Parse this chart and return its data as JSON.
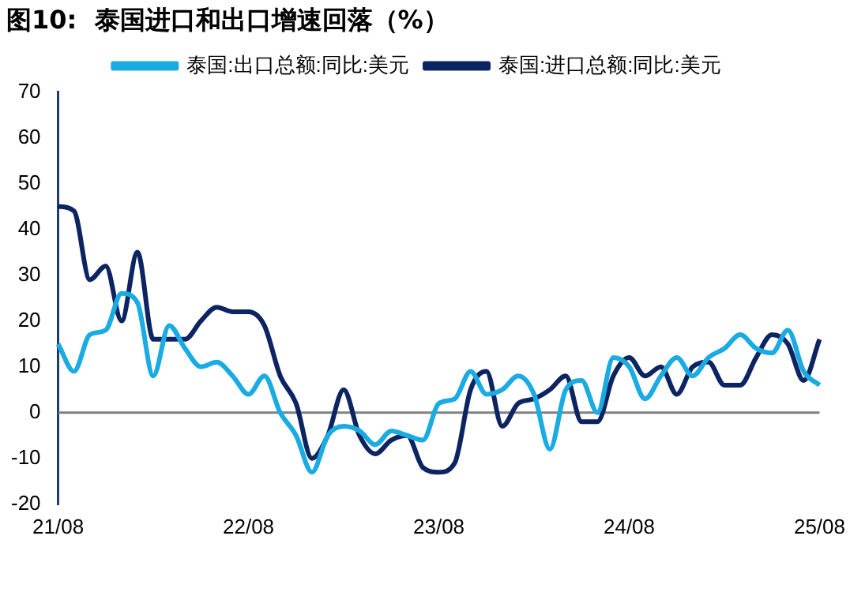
{
  "chart_data": {
    "type": "line",
    "title": "图10:  泰国进口和出口增速回落（%）",
    "categories": [
      "21/08",
      null,
      null,
      null,
      null,
      null,
      null,
      null,
      null,
      null,
      null,
      null,
      "22/08",
      null,
      null,
      null,
      null,
      null,
      null,
      null,
      null,
      null,
      null,
      null,
      "23/08",
      null,
      null,
      null,
      null,
      null,
      null,
      null,
      null,
      null,
      null,
      null,
      "24/08",
      null,
      null,
      null,
      null,
      null,
      null,
      null,
      null,
      null,
      null,
      null,
      "25/08"
    ],
    "series": [
      {
        "name": "泰国:出口总额:同比:美元",
        "color": "#1aabe2",
        "values": [
          15,
          9,
          17,
          18,
          26,
          24,
          8,
          19,
          14,
          10,
          11,
          8,
          4,
          8,
          0,
          -5,
          -13,
          -5,
          -3,
          -4,
          -7,
          -4,
          -5,
          -6,
          2,
          3,
          9,
          4,
          5,
          8,
          4,
          -8,
          5,
          7,
          0,
          12,
          10,
          3,
          8,
          12,
          8,
          12,
          14,
          17,
          14,
          13,
          18,
          9,
          6
        ]
      },
      {
        "name": "泰国:进口总额:同比:美元",
        "color": "#0c2461",
        "values": [
          45,
          44,
          29,
          32,
          20,
          35,
          16,
          16,
          16,
          20,
          23,
          22,
          22,
          19,
          8,
          2,
          -10,
          -5,
          5,
          -5,
          -9,
          -6,
          -5,
          -12,
          -13,
          -11,
          5,
          9,
          -3,
          2,
          3,
          5,
          8,
          -2,
          -2,
          8,
          12,
          8,
          10,
          4,
          10,
          11,
          6,
          6,
          12,
          17,
          15,
          7,
          16
        ]
      }
    ],
    "ylim": [
      -20,
      70
    ],
    "yticks": [
      -20,
      -10,
      0,
      10,
      20,
      30,
      40,
      50,
      60,
      70
    ],
    "grid": false,
    "ref_lines": [
      {
        "axis": "y",
        "value": 0,
        "color": "#808080"
      }
    ],
    "legend": "top",
    "marker": "none",
    "line_style": "solid"
  }
}
